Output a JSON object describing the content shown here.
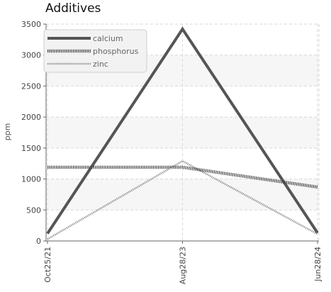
{
  "chart_data": {
    "type": "line",
    "title": "Additives",
    "xlabel": "",
    "ylabel": "ppm",
    "categories": [
      "Oct25/21",
      "Aug28/23",
      "Jun28/24"
    ],
    "ylim": [
      0,
      3500
    ],
    "yticks": [
      0,
      500,
      1000,
      1500,
      2000,
      2500,
      3000,
      3500
    ],
    "grid": true,
    "legend_position": "top-left",
    "series": [
      {
        "name": "calcium",
        "values": [
          120,
          3420,
          130
        ],
        "color": "#555555",
        "style": "solid"
      },
      {
        "name": "phosphorus",
        "values": [
          1190,
          1190,
          870
        ],
        "color": "#444444",
        "style": "dotted"
      },
      {
        "name": "zinc",
        "values": [
          30,
          1290,
          110
        ],
        "color": "#8a8a8a",
        "style": "dotted"
      }
    ]
  }
}
